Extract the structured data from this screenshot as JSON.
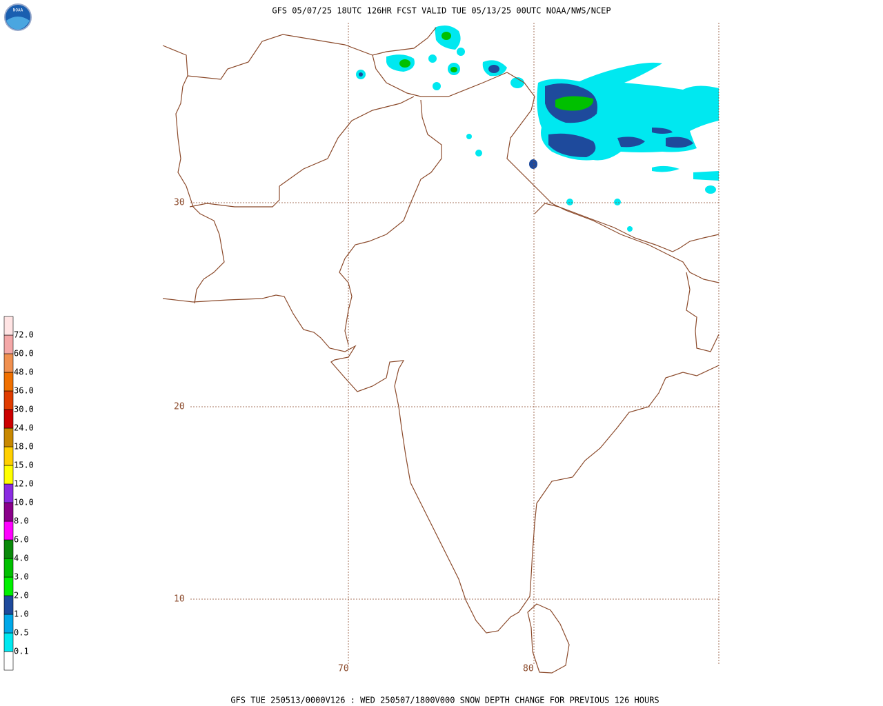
{
  "header": {
    "title": "GFS 05/07/25 18UTC 126HR FCST VALID TUE 05/13/25 00UTC NOAA/NWS/NCEP",
    "logo": "NOAA"
  },
  "footer": {
    "caption": "GFS TUE 250513/0000V126 : WED 250507/1800V000 SNOW DEPTH CHANGE FOR PREVIOUS 126 HOURS"
  },
  "grid_labels": {
    "latitudes": [
      "30",
      "20",
      "10"
    ],
    "longitudes": [
      "70",
      "80"
    ]
  },
  "legend": {
    "labels": [
      "0.1",
      "0.5",
      "1.0",
      "2.0",
      "3.0",
      "4.0",
      "6.0",
      "8.0",
      "10.0",
      "12.0",
      "15.0",
      "18.0",
      "24.0",
      "30.0",
      "36.0",
      "48.0",
      "60.0",
      "72.0"
    ],
    "colors": [
      "#ffffff",
      "#00e8f0",
      "#00a8e8",
      "#1e4a9c",
      "#00f000",
      "#00c000",
      "#0a8a0a",
      "#ff00ff",
      "#8a008a",
      "#8a2be2",
      "#ffff00",
      "#ffd000",
      "#c88800",
      "#cc0000",
      "#e03c00",
      "#f07000",
      "#f09050",
      "#f4a8a8",
      "#ffe4e4"
    ]
  }
}
